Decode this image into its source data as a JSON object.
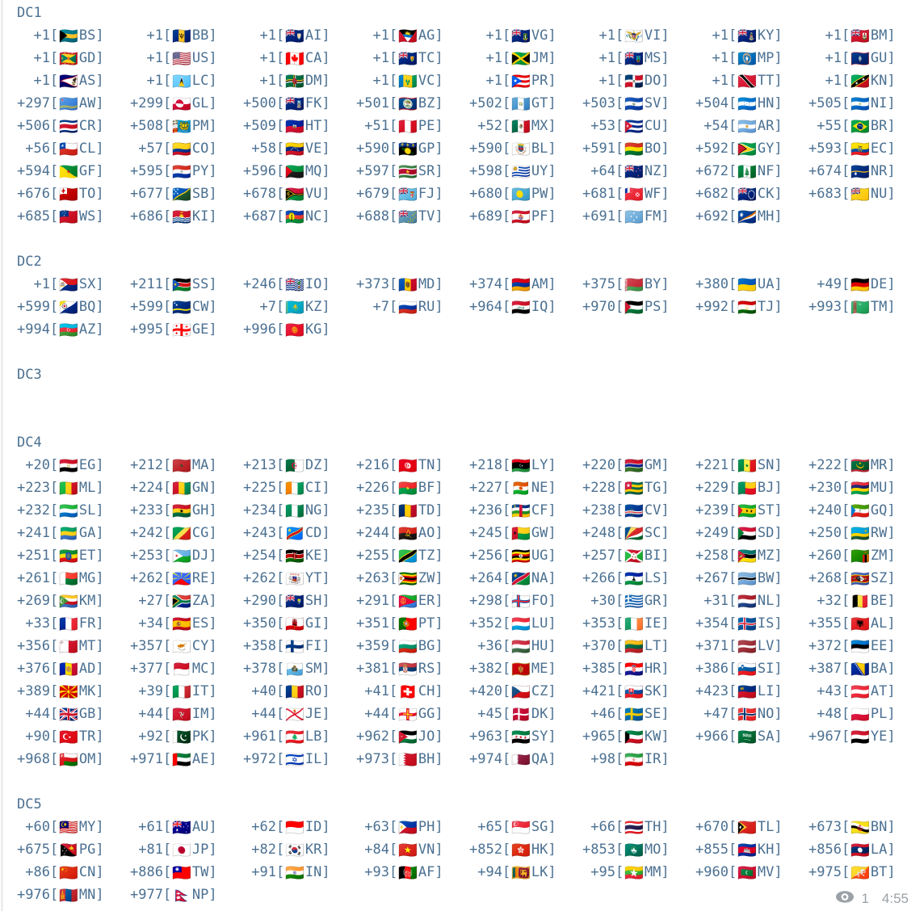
{
  "message": {
    "sections": [
      {
        "name": "DC1",
        "entries": [
          [
            "+1",
            "BS"
          ],
          [
            "+1",
            "BB"
          ],
          [
            "+1",
            "AI"
          ],
          [
            "+1",
            "AG"
          ],
          [
            "+1",
            "VG"
          ],
          [
            "+1",
            "VI"
          ],
          [
            "+1",
            "KY"
          ],
          [
            "+1",
            "BM"
          ],
          [
            "+1",
            "GD"
          ],
          [
            "+1",
            "US"
          ],
          [
            "+1",
            "CA"
          ],
          [
            "+1",
            "TC"
          ],
          [
            "+1",
            "JM"
          ],
          [
            "+1",
            "MS"
          ],
          [
            "+1",
            "MP"
          ],
          [
            "+1",
            "GU"
          ],
          [
            "+1",
            "AS"
          ],
          [
            "+1",
            "LC"
          ],
          [
            "+1",
            "DM"
          ],
          [
            "+1",
            "VC"
          ],
          [
            "+1",
            "PR"
          ],
          [
            "+1",
            "DO"
          ],
          [
            "+1",
            "TT"
          ],
          [
            "+1",
            "KN"
          ],
          [
            "+297",
            "AW"
          ],
          [
            "+299",
            "GL"
          ],
          [
            "+500",
            "FK"
          ],
          [
            "+501",
            "BZ"
          ],
          [
            "+502",
            "GT"
          ],
          [
            "+503",
            "SV"
          ],
          [
            "+504",
            "HN"
          ],
          [
            "+505",
            "NI"
          ],
          [
            "+506",
            "CR"
          ],
          [
            "+508",
            "PM"
          ],
          [
            "+509",
            "HT"
          ],
          [
            "+51",
            "PE"
          ],
          [
            "+52",
            "MX"
          ],
          [
            "+53",
            "CU"
          ],
          [
            "+54",
            "AR"
          ],
          [
            "+55",
            "BR"
          ],
          [
            "+56",
            "CL"
          ],
          [
            "+57",
            "CO"
          ],
          [
            "+58",
            "VE"
          ],
          [
            "+590",
            "GP"
          ],
          [
            "+590",
            "BL"
          ],
          [
            "+591",
            "BO"
          ],
          [
            "+592",
            "GY"
          ],
          [
            "+593",
            "EC"
          ],
          [
            "+594",
            "GF"
          ],
          [
            "+595",
            "PY"
          ],
          [
            "+596",
            "MQ"
          ],
          [
            "+597",
            "SR"
          ],
          [
            "+598",
            "UY"
          ],
          [
            "+64",
            "NZ"
          ],
          [
            "+672",
            "NF"
          ],
          [
            "+674",
            "NR"
          ],
          [
            "+676",
            "TO"
          ],
          [
            "+677",
            "SB"
          ],
          [
            "+678",
            "VU"
          ],
          [
            "+679",
            "FJ"
          ],
          [
            "+680",
            "PW"
          ],
          [
            "+681",
            "WF"
          ],
          [
            "+682",
            "CK"
          ],
          [
            "+683",
            "NU"
          ],
          [
            "+685",
            "WS"
          ],
          [
            "+686",
            "KI"
          ],
          [
            "+687",
            "NC"
          ],
          [
            "+688",
            "TV"
          ],
          [
            "+689",
            "PF"
          ],
          [
            "+691",
            "FM"
          ],
          [
            "+692",
            "MH"
          ]
        ]
      },
      {
        "name": "DC2",
        "entries": [
          [
            "+1",
            "SX"
          ],
          [
            "+211",
            "SS"
          ],
          [
            "+246",
            "IO"
          ],
          [
            "+373",
            "MD"
          ],
          [
            "+374",
            "AM"
          ],
          [
            "+375",
            "BY"
          ],
          [
            "+380",
            "UA"
          ],
          [
            "+49",
            "DE"
          ],
          [
            "+599",
            "BQ"
          ],
          [
            "+599",
            "CW"
          ],
          [
            "+7",
            "KZ"
          ],
          [
            "+7",
            "RU"
          ],
          [
            "+964",
            "IQ"
          ],
          [
            "+970",
            "PS"
          ],
          [
            "+992",
            "TJ"
          ],
          [
            "+993",
            "TM"
          ],
          [
            "+994",
            "AZ"
          ],
          [
            "+995",
            "GE"
          ],
          [
            "+996",
            "KG"
          ]
        ]
      },
      {
        "name": "DC3",
        "entries": []
      },
      {
        "name": "DC4",
        "entries": [
          [
            "+20",
            "EG"
          ],
          [
            "+212",
            "MA"
          ],
          [
            "+213",
            "DZ"
          ],
          [
            "+216",
            "TN"
          ],
          [
            "+218",
            "LY"
          ],
          [
            "+220",
            "GM"
          ],
          [
            "+221",
            "SN"
          ],
          [
            "+222",
            "MR"
          ],
          [
            "+223",
            "ML"
          ],
          [
            "+224",
            "GN"
          ],
          [
            "+225",
            "CI"
          ],
          [
            "+226",
            "BF"
          ],
          [
            "+227",
            "NE"
          ],
          [
            "+228",
            "TG"
          ],
          [
            "+229",
            "BJ"
          ],
          [
            "+230",
            "MU"
          ],
          [
            "+232",
            "SL"
          ],
          [
            "+233",
            "GH"
          ],
          [
            "+234",
            "NG"
          ],
          [
            "+235",
            "TD"
          ],
          [
            "+236",
            "CF"
          ],
          [
            "+238",
            "CV"
          ],
          [
            "+239",
            "ST"
          ],
          [
            "+240",
            "GQ"
          ],
          [
            "+241",
            "GA"
          ],
          [
            "+242",
            "CG"
          ],
          [
            "+243",
            "CD"
          ],
          [
            "+244",
            "AO"
          ],
          [
            "+245",
            "GW"
          ],
          [
            "+248",
            "SC"
          ],
          [
            "+249",
            "SD"
          ],
          [
            "+250",
            "RW"
          ],
          [
            "+251",
            "ET"
          ],
          [
            "+253",
            "DJ"
          ],
          [
            "+254",
            "KE"
          ],
          [
            "+255",
            "TZ"
          ],
          [
            "+256",
            "UG"
          ],
          [
            "+257",
            "BI"
          ],
          [
            "+258",
            "MZ"
          ],
          [
            "+260",
            "ZM"
          ],
          [
            "+261",
            "MG"
          ],
          [
            "+262",
            "RE"
          ],
          [
            "+262",
            "YT"
          ],
          [
            "+263",
            "ZW"
          ],
          [
            "+264",
            "NA"
          ],
          [
            "+266",
            "LS"
          ],
          [
            "+267",
            "BW"
          ],
          [
            "+268",
            "SZ"
          ],
          [
            "+269",
            "KM"
          ],
          [
            "+27",
            "ZA"
          ],
          [
            "+290",
            "SH"
          ],
          [
            "+291",
            "ER"
          ],
          [
            "+298",
            "FO"
          ],
          [
            "+30",
            "GR"
          ],
          [
            "+31",
            "NL"
          ],
          [
            "+32",
            "BE"
          ],
          [
            "+33",
            "FR"
          ],
          [
            "+34",
            "ES"
          ],
          [
            "+350",
            "GI"
          ],
          [
            "+351",
            "PT"
          ],
          [
            "+352",
            "LU"
          ],
          [
            "+353",
            "IE"
          ],
          [
            "+354",
            "IS"
          ],
          [
            "+355",
            "AL"
          ],
          [
            "+356",
            "MT"
          ],
          [
            "+357",
            "CY"
          ],
          [
            "+358",
            "FI"
          ],
          [
            "+359",
            "BG"
          ],
          [
            "+36",
            "HU"
          ],
          [
            "+370",
            "LT"
          ],
          [
            "+371",
            "LV"
          ],
          [
            "+372",
            "EE"
          ],
          [
            "+376",
            "AD"
          ],
          [
            "+377",
            "MC"
          ],
          [
            "+378",
            "SM"
          ],
          [
            "+381",
            "RS"
          ],
          [
            "+382",
            "ME"
          ],
          [
            "+385",
            "HR"
          ],
          [
            "+386",
            "SI"
          ],
          [
            "+387",
            "BA"
          ],
          [
            "+389",
            "MK"
          ],
          [
            "+39",
            "IT"
          ],
          [
            "+40",
            "RO"
          ],
          [
            "+41",
            "CH"
          ],
          [
            "+420",
            "CZ"
          ],
          [
            "+421",
            "SK"
          ],
          [
            "+423",
            "LI"
          ],
          [
            "+43",
            "AT"
          ],
          [
            "+44",
            "GB"
          ],
          [
            "+44",
            "IM"
          ],
          [
            "+44",
            "JE"
          ],
          [
            "+44",
            "GG"
          ],
          [
            "+45",
            "DK"
          ],
          [
            "+46",
            "SE"
          ],
          [
            "+47",
            "NO"
          ],
          [
            "+48",
            "PL"
          ],
          [
            "+90",
            "TR"
          ],
          [
            "+92",
            "PK"
          ],
          [
            "+961",
            "LB"
          ],
          [
            "+962",
            "JO"
          ],
          [
            "+963",
            "SY"
          ],
          [
            "+965",
            "KW"
          ],
          [
            "+966",
            "SA"
          ],
          [
            "+967",
            "YE"
          ],
          [
            "+968",
            "OM"
          ],
          [
            "+971",
            "AE"
          ],
          [
            "+972",
            "IL"
          ],
          [
            "+973",
            "BH"
          ],
          [
            "+974",
            "QA"
          ],
          [
            "+98",
            "IR"
          ]
        ]
      },
      {
        "name": "DC5",
        "entries": [
          [
            "+60",
            "MY"
          ],
          [
            "+61",
            "AU"
          ],
          [
            "+62",
            "ID"
          ],
          [
            "+63",
            "PH"
          ],
          [
            "+65",
            "SG"
          ],
          [
            "+66",
            "TH"
          ],
          [
            "+670",
            "TL"
          ],
          [
            "+673",
            "BN"
          ],
          [
            "+675",
            "PG"
          ],
          [
            "+81",
            "JP"
          ],
          [
            "+82",
            "KR"
          ],
          [
            "+84",
            "VN"
          ],
          [
            "+852",
            "HK"
          ],
          [
            "+853",
            "MO"
          ],
          [
            "+855",
            "KH"
          ],
          [
            "+856",
            "LA"
          ],
          [
            "+86",
            "CN"
          ],
          [
            "+886",
            "TW"
          ],
          [
            "+91",
            "IN"
          ],
          [
            "+93",
            "AF"
          ],
          [
            "+94",
            "LK"
          ],
          [
            "+95",
            "MM"
          ],
          [
            "+960",
            "MV"
          ],
          [
            "+975",
            "BT"
          ],
          [
            "+976",
            "MN"
          ],
          [
            "+977",
            "NP"
          ]
        ]
      }
    ],
    "footer": {
      "views": "1",
      "time": "4:55",
      "eye_icon": "views-eye-icon"
    }
  },
  "colors": {
    "text": "#4c7192",
    "meta": "#9ba1a6",
    "background": "#ffffff"
  }
}
